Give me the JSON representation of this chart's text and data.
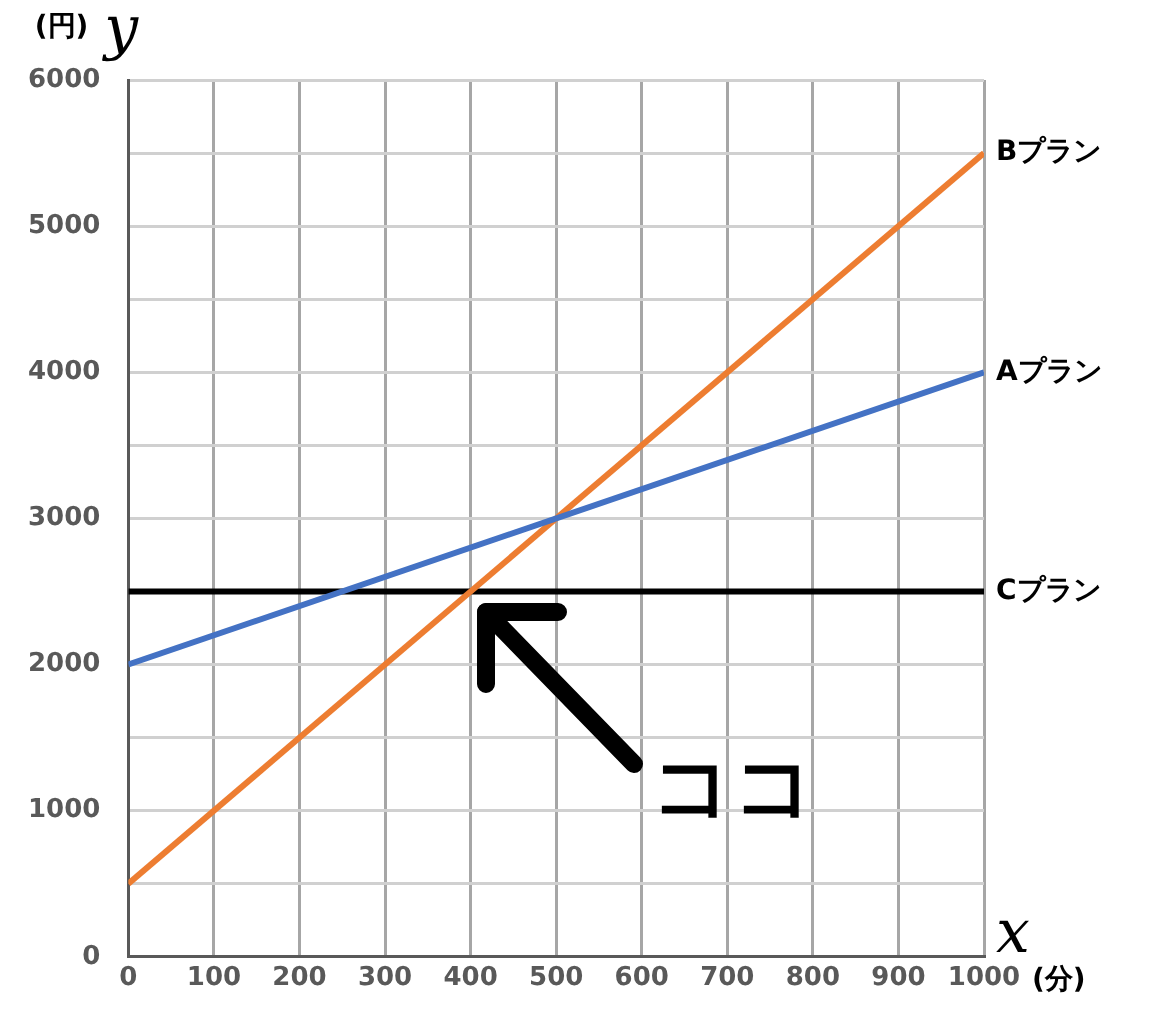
{
  "chart_data": {
    "type": "line",
    "xlabel": "(分)",
    "ylabel": "(円)",
    "x": [
      0,
      1000
    ],
    "series": [
      {
        "name": "Aプラン",
        "color": "#4472c4",
        "values": [
          2000,
          4000
        ]
      },
      {
        "name": "Bプラン",
        "color": "#ed7d31",
        "values": [
          500,
          5500
        ]
      },
      {
        "name": "Cプラン",
        "color": "#000000",
        "values": [
          2500,
          2500
        ]
      }
    ],
    "xlim": [
      0,
      1000
    ],
    "xticks": [
      0,
      100,
      200,
      300,
      400,
      500,
      600,
      700,
      800,
      900,
      1000
    ],
    "ylim": [
      0,
      6000
    ],
    "yticks": [
      0,
      {
        "value": 500,
        "label": null
      },
      1000,
      {
        "value": 1500,
        "label": null
      },
      2000,
      {
        "value": 2500,
        "label": null
      },
      3000,
      {
        "value": 3500,
        "label": null
      },
      4000,
      {
        "value": 4500,
        "label": null
      },
      5000,
      {
        "value": 5500,
        "label": null
      },
      6000
    ],
    "grid": true,
    "legend": false,
    "marker": "none",
    "line_style": "solid",
    "annotations": [
      {
        "text": "ココ",
        "x": 400,
        "y": 2500
      },
      "y",
      "x"
    ]
  }
}
